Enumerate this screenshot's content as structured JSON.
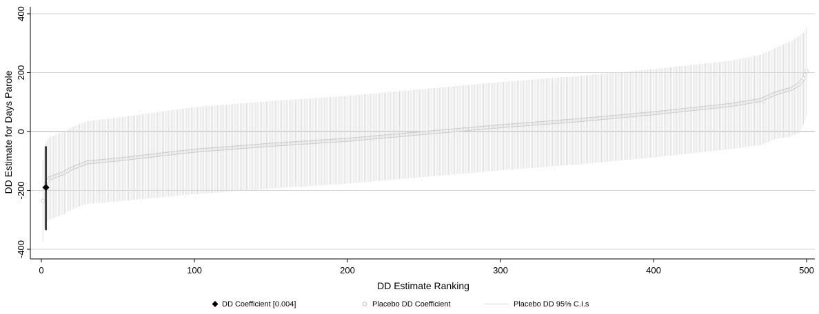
{
  "chart_data": {
    "type": "scatter",
    "title": "",
    "xlabel": "DD Estimate Ranking",
    "ylabel": "DD Estimate for Days Parole",
    "xlim": [
      0,
      502
    ],
    "ylim": [
      -420,
      410
    ],
    "x_ticks": [
      "0",
      "100",
      "200",
      "300",
      "400",
      "500"
    ],
    "y_ticks": [
      "-400",
      "-200",
      "0",
      "200",
      "400"
    ],
    "grid": "horizontal",
    "legend_position": "bottom",
    "n_placebo": 500,
    "placebo_curve": {
      "rank": [
        1,
        2,
        3,
        5,
        10,
        15,
        20,
        30,
        50,
        100,
        150,
        200,
        250,
        300,
        350,
        400,
        450,
        470,
        480,
        490,
        495,
        498,
        500
      ],
      "estimate": [
        -235,
        -190,
        -175,
        -160,
        -150,
        -140,
        -125,
        -105,
        -95,
        -65,
        -45,
        -28,
        -5,
        18,
        38,
        62,
        90,
        107,
        130,
        145,
        160,
        180,
        205
      ],
      "ci_halfwidth_rank": [
        1,
        10,
        30,
        100,
        300,
        450,
        480,
        495,
        500
      ],
      "ci_halfwidth_value": [
        140,
        140,
        140,
        148,
        150,
        150,
        155,
        165,
        150
      ]
    },
    "dd_coefficient": {
      "rank": 3,
      "estimate": -190,
      "ci_low": -335,
      "ci_high": -50
    },
    "series": [
      {
        "name": "DD Coefficient   [0.004]",
        "marker": "diamond",
        "color": "#000000"
      },
      {
        "name": "Placebo DD Coefficient",
        "marker": "hollow-circle",
        "color": "#c8c8c8"
      },
      {
        "name": "Placebo DD 95% C.I.s",
        "marker": "line",
        "color": "#d9d9d9"
      }
    ],
    "colors": {
      "ci": "#d9d9d9",
      "placebo": "#c8c8c8",
      "dd": "#000000",
      "grid": "#d0d0d0",
      "zero_line": "#a8a8a8"
    }
  }
}
